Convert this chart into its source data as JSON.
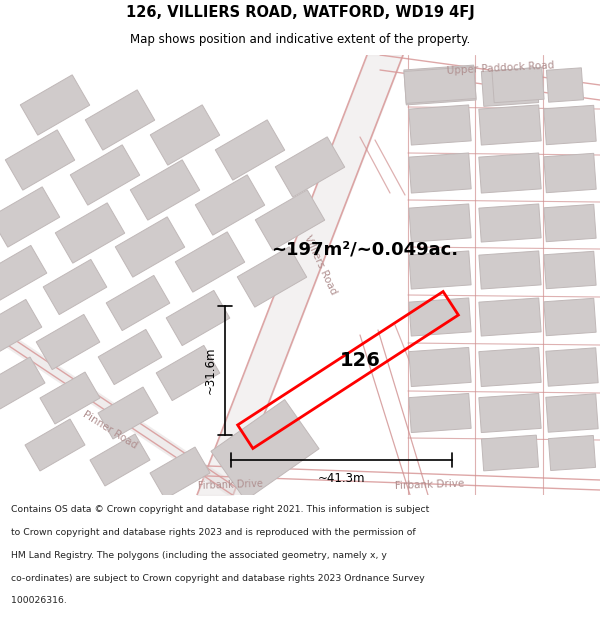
{
  "title_line1": "126, VILLIERS ROAD, WATFORD, WD19 4FJ",
  "title_line2": "Map shows position and indicative extent of the property.",
  "area_text": "~197m²/~0.049ac.",
  "label_126": "126",
  "dim_vertical": "~31.6m",
  "dim_horizontal": "~41.3m",
  "footer_lines": [
    "Contains OS data © Crown copyright and database right 2021. This information is subject",
    "to Crown copyright and database rights 2023 and is reproduced with the permission of",
    "HM Land Registry. The polygons (including the associated geometry, namely x, y",
    "co-ordinates) are subject to Crown copyright and database rights 2023 Ordnance Survey",
    "100026316."
  ],
  "map_bg": "#f0eded",
  "road_color": "#e8b0b0",
  "building_fill": "#d0cbcb",
  "building_edge": "#c0b8b8",
  "highlight_color": "#ff0000",
  "road_label_color": "#b09090",
  "figsize": [
    6.0,
    6.25
  ],
  "dpi": 100,
  "map_xlim": [
    0,
    600
  ],
  "map_ylim": [
    0,
    440
  ]
}
